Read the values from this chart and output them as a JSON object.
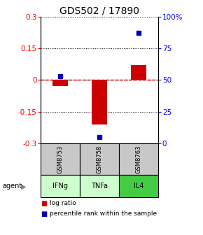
{
  "title": "GDS502 / 17890",
  "samples": [
    "GSM8753",
    "GSM8758",
    "GSM8763"
  ],
  "agents": [
    "IFNg",
    "TNFa",
    "IL4"
  ],
  "log_ratios": [
    -0.03,
    -0.21,
    0.07
  ],
  "percentile_ranks": [
    53,
    5,
    87
  ],
  "ylim_left": [
    -0.3,
    0.3
  ],
  "ylim_right": [
    0,
    100
  ],
  "yticks_left": [
    -0.3,
    -0.15,
    0.0,
    0.15,
    0.3
  ],
  "yticks_right": [
    0,
    25,
    50,
    75,
    100
  ],
  "ytick_labels_left": [
    "-0.3",
    "-0.15",
    "0",
    "0.15",
    "0.3"
  ],
  "ytick_labels_right": [
    "0",
    "25",
    "50",
    "75",
    "100%"
  ],
  "bar_color_log": "#cc0000",
  "bar_color_pct": "#0000bb",
  "zero_line_color": "#dd0000",
  "sample_box_color": "#c8c8c8",
  "agent_colors": [
    "#ccffcc",
    "#ccffcc",
    "#44cc44"
  ],
  "title_fontsize": 10,
  "tick_fontsize": 7.5,
  "bar_width": 0.4
}
